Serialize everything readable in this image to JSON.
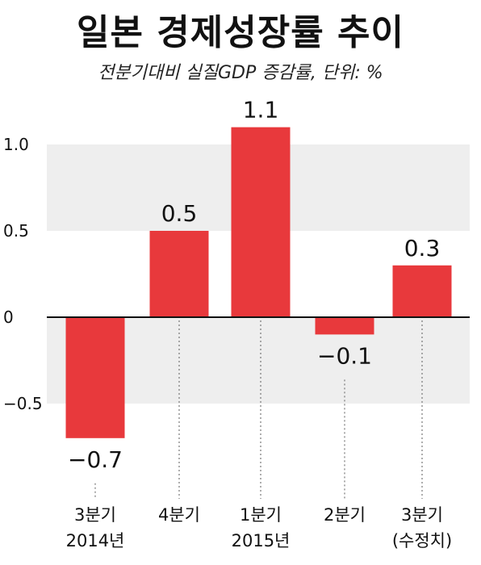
{
  "header": {
    "title": "일본 경제성장률 추이",
    "subtitle": "전분기대비 실질GDP 증감률, 단위: %"
  },
  "chart_data": {
    "type": "bar",
    "title": "일본 경제성장률 추이",
    "subtitle": "전분기대비 실질GDP 증감률, 단위: %",
    "categories": [
      [
        "3분기",
        "2014년"
      ],
      [
        "4분기"
      ],
      [
        "1분기",
        "2015년"
      ],
      [
        "2분기"
      ],
      [
        "3분기",
        "(수정치)"
      ]
    ],
    "values": [
      -0.7,
      0.5,
      1.1,
      -0.1,
      0.3
    ],
    "data_labels": [
      "−0.7",
      "0.5",
      "1.1",
      "−0.1",
      "0.3"
    ],
    "yticks": [
      1.0,
      0.5,
      0,
      -0.5
    ],
    "ytick_labels": [
      "1.0",
      "0.5",
      "0",
      "−0.5"
    ],
    "ylim": [
      -0.85,
      1.2
    ],
    "bar_color": "#e8393c",
    "band_color": "#eeeeee",
    "grid": "alternating bands"
  }
}
